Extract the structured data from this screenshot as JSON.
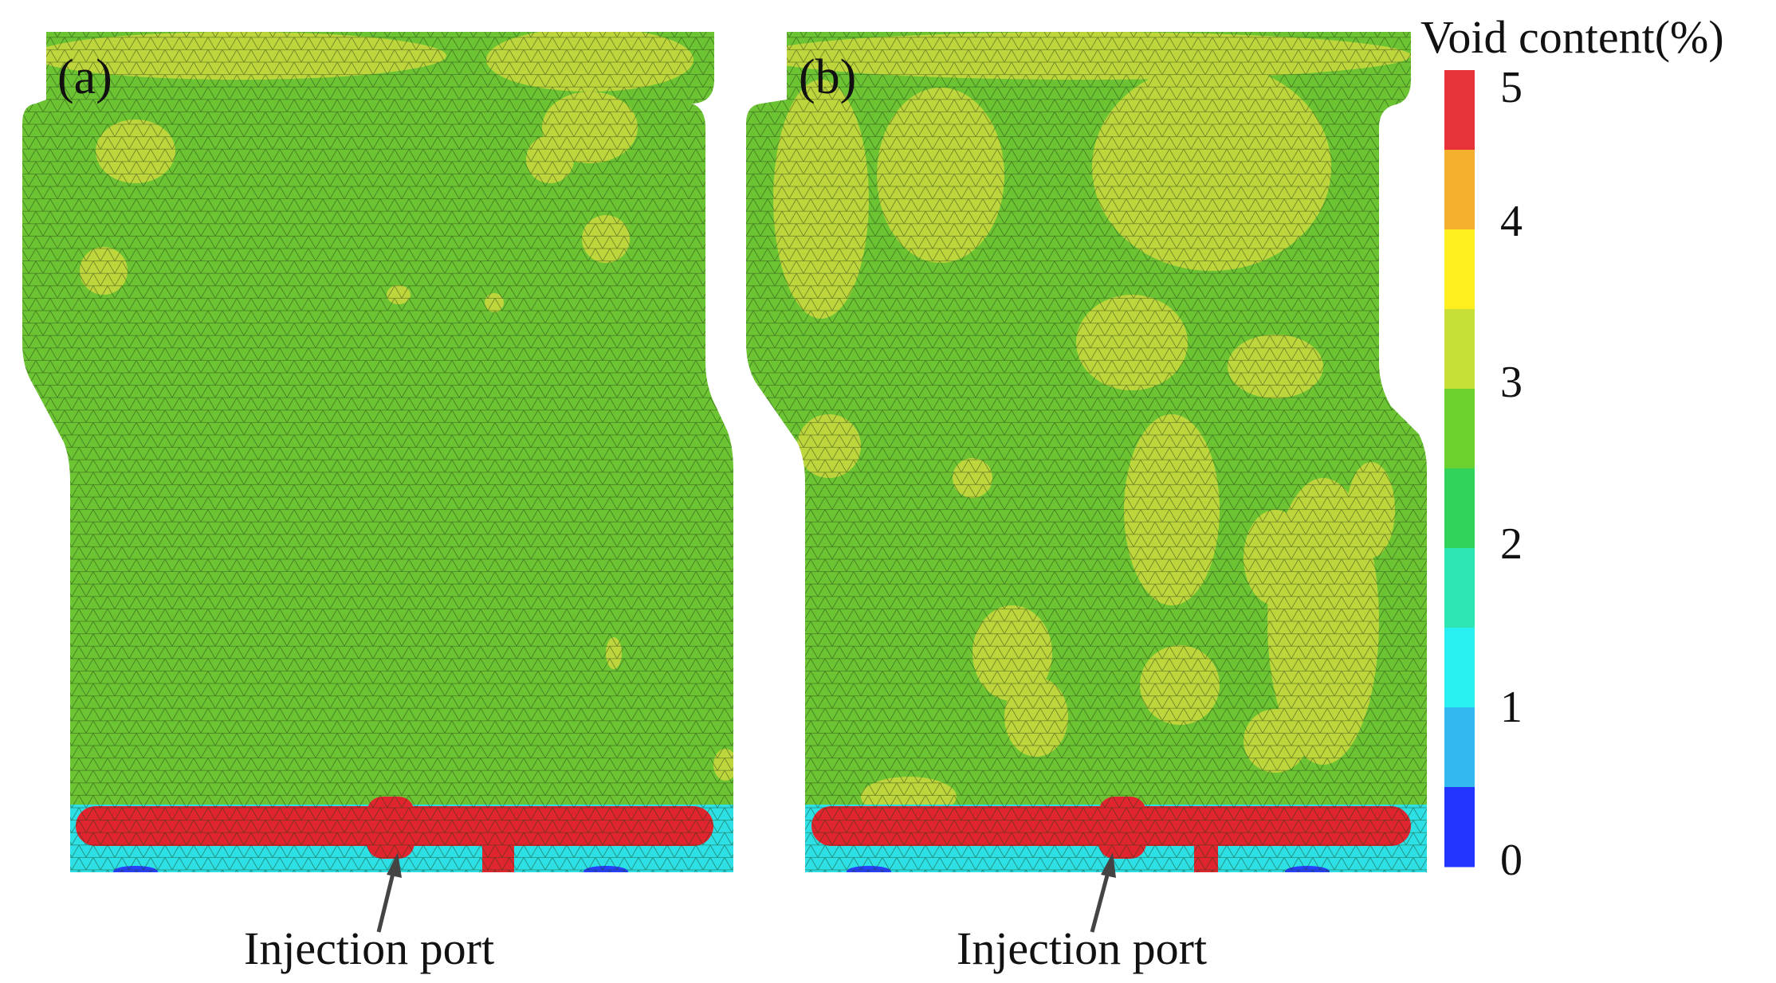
{
  "panels": [
    {
      "label": "(a)",
      "annotation": "Injection port"
    },
    {
      "label": "(b)",
      "annotation": "Injection port"
    }
  ],
  "legend": {
    "title": "Void content(%)",
    "ticks": [
      "5",
      "4",
      "3",
      "2",
      "1",
      "0"
    ],
    "band_colors": [
      "#e8323a",
      "#f5b12d",
      "#ffef1e",
      "#c7df36",
      "#6cd12e",
      "#32d35a",
      "#2ee6b2",
      "#28f0f2",
      "#33b9ef",
      "#2235ff"
    ]
  },
  "colors": {
    "base_green": "#6cc433",
    "light_patch": "#bfd53c",
    "hot_strip": "#e1252f",
    "cool_edge": "#2ce0e6",
    "low_spot": "#2840ff",
    "mesh": "#1d3a12"
  }
}
